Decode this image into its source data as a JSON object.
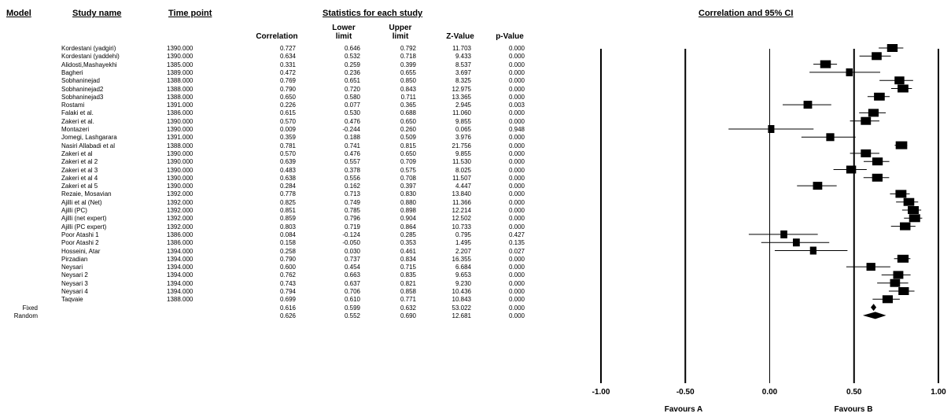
{
  "headers": {
    "model": "Model",
    "study_name": "Study name",
    "time_point": "Time point",
    "stats": "Statistics for each study",
    "ci": "Correlation and 95% CI"
  },
  "columns": {
    "correlation": "Correlation",
    "lower": [
      "Lower",
      "limit"
    ],
    "upper": [
      "Upper",
      "limit"
    ],
    "z": "Z-Value",
    "p": "p-Value"
  },
  "favours": {
    "a": "Favours A",
    "b": "Favours B"
  },
  "chart_data": {
    "type": "forest",
    "xlim": [
      -1.0,
      1.0
    ],
    "xticks": [
      "-1.00",
      "-0.50",
      "0.00",
      "0.50",
      "1.00"
    ],
    "reference_line": 0.5,
    "studies": [
      {
        "model": "",
        "name": "Kordestani (yadgiri)",
        "time": "1390.000",
        "r": "0.727",
        "lo": "0.646",
        "hi": "0.792",
        "z": "11.703",
        "p": "0.000"
      },
      {
        "model": "",
        "name": "Kordestani (yaddehi)",
        "time": "1390.000",
        "r": "0.634",
        "lo": "0.532",
        "hi": "0.718",
        "z": "9.433",
        "p": "0.000"
      },
      {
        "model": "",
        "name": "Alidosti,Mashayekhi",
        "time": "1385.000",
        "r": "0.331",
        "lo": "0.259",
        "hi": "0.399",
        "z": "8.537",
        "p": "0.000"
      },
      {
        "model": "",
        "name": "Bagheri",
        "time": "1389.000",
        "r": "0.472",
        "lo": "0.236",
        "hi": "0.655",
        "z": "3.697",
        "p": "0.000"
      },
      {
        "model": "",
        "name": "Sobhaninejad",
        "time": "1388.000",
        "r": "0.769",
        "lo": "0.651",
        "hi": "0.850",
        "z": "8.325",
        "p": "0.000"
      },
      {
        "model": "",
        "name": "Sobhaninejad2",
        "time": "1388.000",
        "r": "0.790",
        "lo": "0.720",
        "hi": "0.843",
        "z": "12.975",
        "p": "0.000"
      },
      {
        "model": "",
        "name": "Sobhaninejad3",
        "time": "1388.000",
        "r": "0.650",
        "lo": "0.580",
        "hi": "0.711",
        "z": "13.365",
        "p": "0.000"
      },
      {
        "model": "",
        "name": "Rostami",
        "time": "1391.000",
        "r": "0.226",
        "lo": "0.077",
        "hi": "0.365",
        "z": "2.945",
        "p": "0.003"
      },
      {
        "model": "",
        "name": "Falaki et al.",
        "time": "1386.000",
        "r": "0.615",
        "lo": "0.530",
        "hi": "0.688",
        "z": "11.060",
        "p": "0.000"
      },
      {
        "model": "",
        "name": "Zakeri et al.",
        "time": "1390.000",
        "r": "0.570",
        "lo": "0.476",
        "hi": "0.650",
        "z": "9.855",
        "p": "0.000"
      },
      {
        "model": "",
        "name": "Montazeri",
        "time": "1390.000",
        "r": "0.009",
        "lo": "-0.244",
        "hi": "0.260",
        "z": "0.065",
        "p": "0.948"
      },
      {
        "model": "",
        "name": "Jomegi, Lashgarara",
        "time": "1391.000",
        "r": "0.359",
        "lo": "0.188",
        "hi": "0.509",
        "z": "3.976",
        "p": "0.000"
      },
      {
        "model": "",
        "name": "Nasiri Allabadi et al",
        "time": "1388.000",
        "r": "0.781",
        "lo": "0.741",
        "hi": "0.815",
        "z": "21.756",
        "p": "0.000"
      },
      {
        "model": "",
        "name": "Zakeri et al",
        "time": "1390.000",
        "r": "0.570",
        "lo": "0.476",
        "hi": "0.650",
        "z": "9.855",
        "p": "0.000"
      },
      {
        "model": "",
        "name": "Zakeri et al 2",
        "time": "1390.000",
        "r": "0.639",
        "lo": "0.557",
        "hi": "0.709",
        "z": "11.530",
        "p": "0.000"
      },
      {
        "model": "",
        "name": "Zakeri et al 3",
        "time": "1390.000",
        "r": "0.483",
        "lo": "0.378",
        "hi": "0.575",
        "z": "8.025",
        "p": "0.000"
      },
      {
        "model": "",
        "name": "Zakeri et al 4",
        "time": "1390.000",
        "r": "0.638",
        "lo": "0.556",
        "hi": "0.708",
        "z": "11.507",
        "p": "0.000"
      },
      {
        "model": "",
        "name": "Zakeri et al 5",
        "time": "1390.000",
        "r": "0.284",
        "lo": "0.162",
        "hi": "0.397",
        "z": "4.447",
        "p": "0.000"
      },
      {
        "model": "",
        "name": "Rezaie, Mosavian",
        "time": "1392.000",
        "r": "0.778",
        "lo": "0.713",
        "hi": "0.830",
        "z": "13.840",
        "p": "0.000"
      },
      {
        "model": "",
        "name": "Ajilli et al (Net)",
        "time": "1392.000",
        "r": "0.825",
        "lo": "0.749",
        "hi": "0.880",
        "z": "11.366",
        "p": "0.000"
      },
      {
        "model": "",
        "name": "Ajilli (PC)",
        "time": "1392.000",
        "r": "0.851",
        "lo": "0.785",
        "hi": "0.898",
        "z": "12.214",
        "p": "0.000"
      },
      {
        "model": "",
        "name": "Ajilli (net expert)",
        "time": "1392.000",
        "r": "0.859",
        "lo": "0.796",
        "hi": "0.904",
        "z": "12.502",
        "p": "0.000"
      },
      {
        "model": "",
        "name": "Ajilli (PC expert)",
        "time": "1392.000",
        "r": "0.803",
        "lo": "0.719",
        "hi": "0.864",
        "z": "10.733",
        "p": "0.000"
      },
      {
        "model": "",
        "name": "Poor Atashi 1",
        "time": "1386.000",
        "r": "0.084",
        "lo": "-0.124",
        "hi": "0.285",
        "z": "0.795",
        "p": "0.427"
      },
      {
        "model": "",
        "name": "Poor Atashi 2",
        "time": "1386.000",
        "r": "0.158",
        "lo": "-0.050",
        "hi": "0.353",
        "z": "1.495",
        "p": "0.135"
      },
      {
        "model": "",
        "name": "Hosseini, Atar",
        "time": "1394.000",
        "r": "0.258",
        "lo": "0.030",
        "hi": "0.461",
        "z": "2.207",
        "p": "0.027"
      },
      {
        "model": "",
        "name": "Pirzadian",
        "time": "1394.000",
        "r": "0.790",
        "lo": "0.737",
        "hi": "0.834",
        "z": "16.355",
        "p": "0.000"
      },
      {
        "model": "",
        "name": "Neysari",
        "time": "1394.000",
        "r": "0.600",
        "lo": "0.454",
        "hi": "0.715",
        "z": "6.684",
        "p": "0.000"
      },
      {
        "model": "",
        "name": "Neysari 2",
        "time": "1394.000",
        "r": "0.762",
        "lo": "0.663",
        "hi": "0.835",
        "z": "9.653",
        "p": "0.000"
      },
      {
        "model": "",
        "name": "Neysari 3",
        "time": "1394.000",
        "r": "0.743",
        "lo": "0.637",
        "hi": "0.821",
        "z": "9.230",
        "p": "0.000"
      },
      {
        "model": "",
        "name": "Neysari 4",
        "time": "1394.000",
        "r": "0.794",
        "lo": "0.706",
        "hi": "0.858",
        "z": "10.436",
        "p": "0.000"
      },
      {
        "model": "",
        "name": "Taqvaie",
        "time": "1388.000",
        "r": "0.699",
        "lo": "0.610",
        "hi": "0.771",
        "z": "10.843",
        "p": "0.000"
      }
    ],
    "summary": [
      {
        "model": "Fixed",
        "name": "",
        "time": "",
        "r": "0.616",
        "lo": "0.599",
        "hi": "0.632",
        "z": "53.022",
        "p": "0.000"
      },
      {
        "model": "Random",
        "name": "",
        "time": "",
        "r": "0.626",
        "lo": "0.552",
        "hi": "0.690",
        "z": "12.681",
        "p": "0.000"
      }
    ]
  }
}
